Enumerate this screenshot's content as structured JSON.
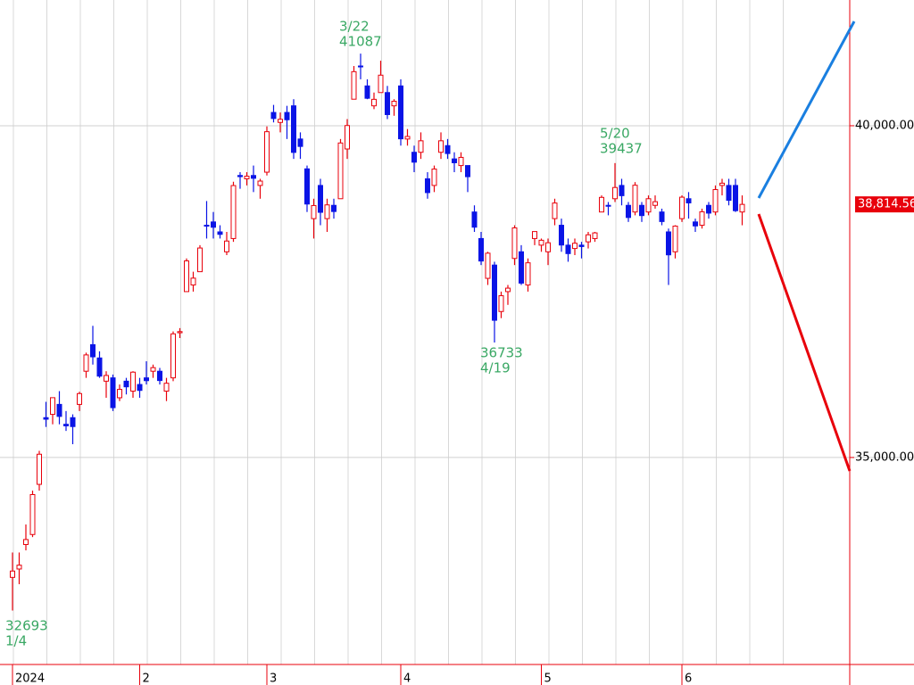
{
  "chart_data": {
    "type": "candlestick",
    "categories": [
      "2024",
      null,
      null,
      null,
      null,
      null,
      null,
      null,
      null,
      null,
      null,
      null,
      null,
      null,
      null,
      null,
      null,
      null,
      null,
      "2",
      null,
      null,
      null,
      null,
      null,
      null,
      null,
      null,
      null,
      null,
      null,
      null,
      null,
      null,
      null,
      null,
      null,
      null,
      "3",
      null,
      null,
      null,
      null,
      null,
      null,
      null,
      null,
      null,
      null,
      null,
      null,
      null,
      null,
      null,
      null,
      null,
      null,
      null,
      "4",
      null,
      null,
      null,
      null,
      null,
      null,
      null,
      null,
      null,
      null,
      null,
      null,
      null,
      null,
      null,
      null,
      null,
      null,
      null,
      null,
      "5",
      null,
      null,
      null,
      null,
      null,
      null,
      null,
      null,
      null,
      null,
      null,
      null,
      null,
      null,
      null,
      null,
      null,
      null,
      null,
      null,
      "6",
      null,
      null,
      null,
      null,
      null,
      null,
      null,
      null,
      null
    ],
    "open": [
      33193,
      33319,
      33688,
      33839,
      34595,
      35600,
      35650,
      35800,
      35500,
      35600,
      35800,
      36300,
      36700,
      36500,
      36150,
      36200,
      35900,
      36150,
      36000,
      36100,
      36200,
      36300,
      36300,
      36000,
      36200,
      36880,
      37500,
      37600,
      37800,
      38500,
      38550,
      38400,
      38100,
      38300,
      39250,
      39200,
      39250,
      39100,
      39300,
      40200,
      40050,
      40200,
      40300,
      39800,
      39350,
      38600,
      39100,
      38600,
      38800,
      38900,
      39650,
      40400,
      40900,
      40600,
      40300,
      40500,
      40500,
      40300,
      40600,
      39800,
      39600,
      39600,
      39200,
      39100,
      39600,
      39700,
      39500,
      39400,
      39400,
      38700,
      38300,
      37700,
      37900,
      37200,
      37500,
      38000,
      38100,
      37600,
      38300,
      38200,
      38100,
      38600,
      38500,
      38200,
      38150,
      38200,
      38250,
      38300,
      38700,
      38800,
      38900,
      39100,
      38800,
      38700,
      38800,
      38700,
      38800,
      38700,
      38400,
      38100,
      38600,
      38900,
      38550,
      38500,
      38800,
      38700,
      39100,
      39100,
      39100,
      38700
    ],
    "high": [
      33568,
      33568,
      33990,
      34500,
      35100,
      35839,
      35901,
      36000,
      35700,
      35650,
      35990,
      36580,
      36984,
      36600,
      36300,
      36250,
      36100,
      36200,
      36300,
      36200,
      36450,
      36400,
      36350,
      36200,
      36900,
      36950,
      38000,
      37800,
      38200,
      38865,
      38700,
      38500,
      38400,
      39156,
      39300,
      39300,
      39400,
      39200,
      39990,
      40314,
      40200,
      40300,
      40400,
      39900,
      39400,
      38900,
      39200,
      38900,
      38900,
      39800,
      40100,
      40900,
      41087,
      40700,
      40500,
      40980,
      40600,
      40400,
      40700,
      39950,
      39700,
      39900,
      39300,
      39400,
      39900,
      39800,
      39600,
      39600,
      39400,
      38800,
      38400,
      38100,
      37950,
      37500,
      37600,
      38500,
      38200,
      38000,
      38400,
      38300,
      38300,
      38900,
      38600,
      38300,
      38300,
      38250,
      38400,
      38400,
      38950,
      38850,
      39437,
      39200,
      38850,
      39150,
      38850,
      38950,
      38950,
      38750,
      38450,
      38500,
      38950,
      39000,
      38600,
      38750,
      38850,
      39100,
      39200,
      39200,
      39200,
      38950
    ],
    "low": [
      32693,
      33090,
      33600,
      33800,
      34500,
      35460,
      35500,
      35500,
      35400,
      35200,
      35700,
      36200,
      36400,
      36200,
      35900,
      35700,
      35850,
      35950,
      35900,
      35900,
      36100,
      36200,
      36100,
      35850,
      36150,
      36800,
      37500,
      37500,
      37800,
      38300,
      38300,
      38300,
      38050,
      38250,
      39050,
      39100,
      39000,
      38900,
      39250,
      40050,
      39900,
      39800,
      39500,
      39500,
      38700,
      38300,
      38500,
      38400,
      38600,
      38900,
      39500,
      40400,
      40700,
      40400,
      40250,
      40500,
      40100,
      40150,
      39700,
      39700,
      39300,
      39500,
      38900,
      39000,
      39500,
      39500,
      39300,
      39300,
      39000,
      38400,
      37900,
      37600,
      36733,
      37100,
      37300,
      37900,
      37600,
      37500,
      38200,
      38100,
      37900,
      38500,
      38100,
      37950,
      38050,
      38000,
      38150,
      38250,
      38700,
      38650,
      38850,
      38800,
      38550,
      38650,
      38550,
      38650,
      38750,
      38500,
      37600,
      38000,
      38550,
      38600,
      38400,
      38450,
      38600,
      38650,
      38950,
      38800,
      38700,
      38500
    ],
    "close": [
      33288,
      33377,
      33763,
      34441,
      35049,
      35577,
      35901,
      35619,
      35477,
      35466,
      35963,
      36546,
      36517,
      36226,
      36236,
      35751,
      36026,
      36065,
      36286,
      36011,
      36158,
      36354,
      36160,
      36119,
      36863,
      36897,
      37963,
      37703,
      38157,
      38487,
      38470,
      38363,
      38262,
      39098,
      39233,
      39239,
      39208,
      39166,
      39910,
      40109,
      40097,
      40090,
      39598,
      39688,
      38820,
      38797,
      38695,
      38807,
      38707,
      39740,
      40003,
      40815,
      40888,
      40414,
      40398,
      40762,
      40168,
      40369,
      39803,
      39838,
      39451,
      39773,
      38992,
      39347,
      39773,
      39581,
      39442,
      39523,
      39232,
      38471,
      37961,
      38079,
      37068,
      37438,
      37552,
      38460,
      37628,
      37934,
      38405,
      38274,
      38236,
      38835,
      38202,
      38073,
      38229,
      38179,
      38356,
      38385,
      38920,
      38787,
      39069,
      38946,
      38617,
      39103,
      38646,
      38900,
      38855,
      38556,
      38054,
      38487,
      38923,
      38837,
      38490,
      38703,
      38683,
      39038,
      39134,
      38876,
      38720,
      38814.56
    ],
    "up_color": "#e8000b",
    "down_color": "#0a14e6",
    "ylim": [
      31880,
      41895
    ],
    "yticks": [
      {
        "value": 35000,
        "label": "35,000.00"
      },
      {
        "value": 40000,
        "label": "40,000.00"
      }
    ],
    "current_price": {
      "value": 38814.56,
      "label": "38,814.56"
    },
    "annotations": [
      {
        "date": "3/22",
        "value": 41087
      },
      {
        "date": "5/20",
        "value": 39437
      },
      {
        "date": "4/19",
        "value": 36733
      },
      {
        "date": "1/4",
        "value": 32693
      }
    ],
    "grid": true
  }
}
